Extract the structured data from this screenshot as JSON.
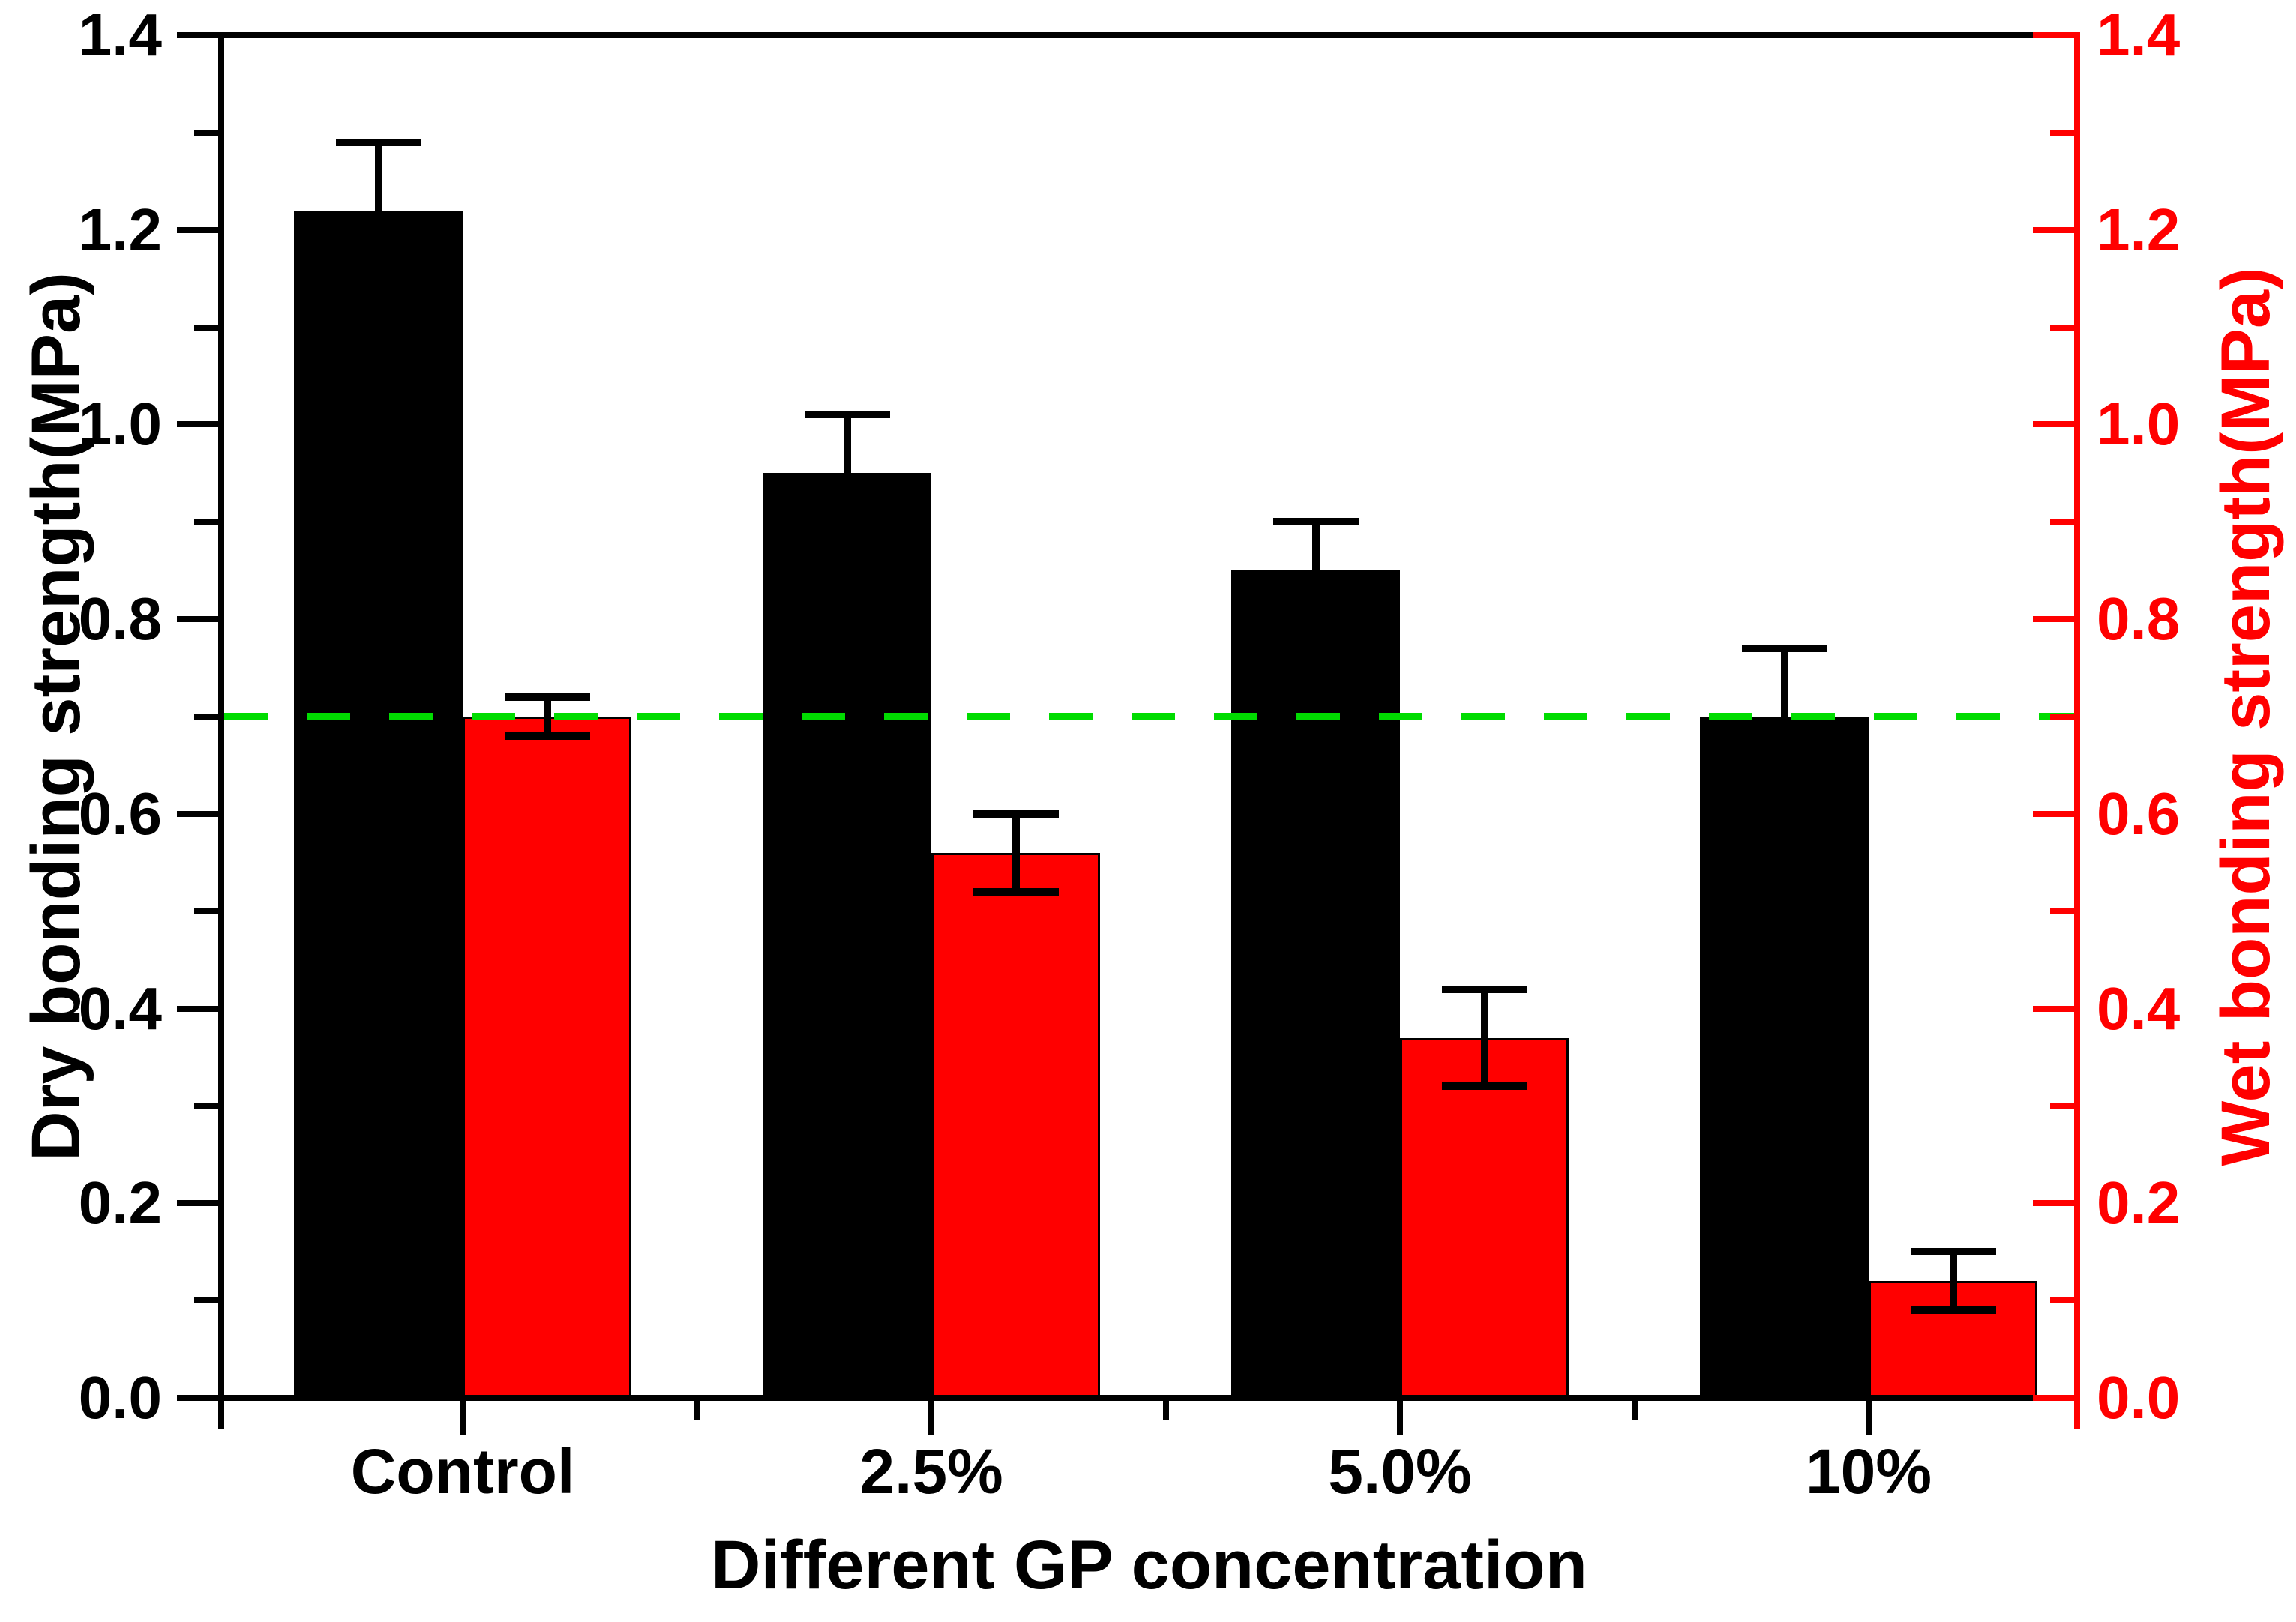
{
  "figure": {
    "left_axis": {
      "title": "Dry bonding strength(MPa)",
      "color": "#000000",
      "min": 0.0,
      "max": 1.4,
      "major_step": 0.2,
      "minor_step": 0.1,
      "tick_labels": [
        "0.0",
        "0.2",
        "0.4",
        "0.6",
        "0.8",
        "1.0",
        "1.2",
        "1.4"
      ]
    },
    "right_axis": {
      "title": "Wet bonding strength(MPa)",
      "color": "#ff0000",
      "min": 0.0,
      "max": 1.4,
      "major_step": 0.2,
      "minor_step": 0.1,
      "tick_labels": [
        "0.0",
        "0.2",
        "0.4",
        "0.6",
        "0.8",
        "1.0",
        "1.2",
        "1.4"
      ]
    },
    "x_axis": {
      "title": "Different GP concentration",
      "categories": [
        "Control",
        "2.5%",
        "5.0%",
        "10%"
      ]
    },
    "reference_line": {
      "value": 0.7,
      "color": "#00dc00",
      "style": "dashed"
    },
    "error_bar_color": "#000000",
    "background_color": "#ffffff"
  },
  "chart_data": {
    "type": "bar",
    "categories": [
      "Control",
      "2.5%",
      "5.0%",
      "10%"
    ],
    "series": [
      {
        "name": "Dry bonding strength",
        "axis": "left",
        "color": "#000000",
        "values": [
          1.22,
          0.95,
          0.85,
          0.7
        ],
        "errors_plus": [
          0.07,
          0.06,
          0.05,
          0.07
        ],
        "errors_minus": [
          0.07,
          0.06,
          0.05,
          0.07
        ]
      },
      {
        "name": "Wet bonding strength",
        "axis": "right",
        "color": "#ff0000",
        "values": [
          0.7,
          0.56,
          0.37,
          0.12
        ],
        "errors_plus": [
          0.02,
          0.04,
          0.05,
          0.03
        ],
        "errors_minus": [
          0.02,
          0.04,
          0.05,
          0.03
        ]
      }
    ],
    "title": "",
    "xlabel": "Different GP concentration",
    "ylabel_left": "Dry bonding strength(MPa)",
    "ylabel_right": "Wet bonding strength(MPa)",
    "ylim": [
      0.0,
      1.4
    ],
    "grid": false,
    "legend": "none",
    "reference_line_y": 0.7
  }
}
